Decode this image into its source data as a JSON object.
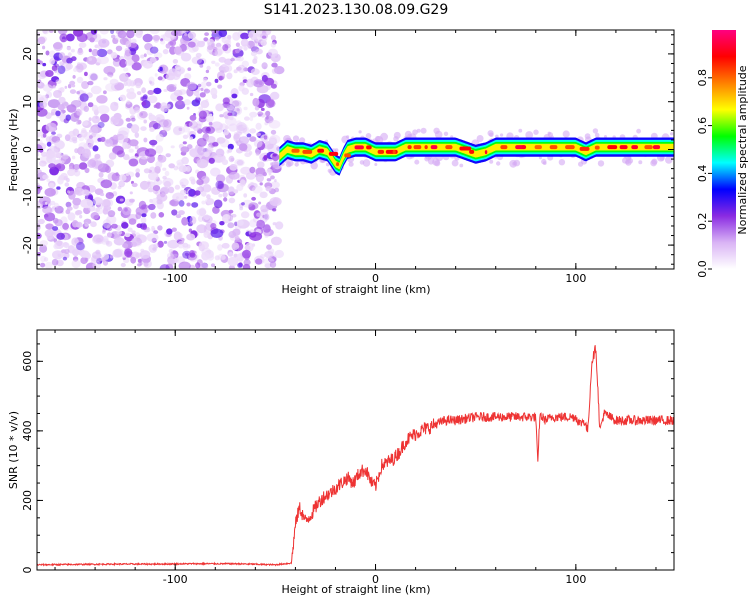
{
  "page": {
    "title": "S141.2023.130.08.09.G29"
  },
  "chart_data": [
    {
      "type": "heatmap",
      "title": "S141.2023.130.08.09.G29",
      "xlabel": "Height of straight line (km)",
      "ylabel": "Frequency (Hz)",
      "xlim": [
        -169,
        149
      ],
      "ylim": [
        -25,
        25
      ],
      "xticks": [
        -100,
        0,
        100
      ],
      "xtick_labels": [
        "-100",
        "0",
        "100"
      ],
      "yticks": [
        20,
        10,
        0,
        -10,
        -20
      ],
      "ytick_labels": [
        "20",
        "10",
        "0",
        "-10",
        "-20"
      ],
      "grid": false,
      "regions": [
        {
          "x_range": [
            -169,
            -48
          ],
          "y_range": [
            -25,
            25
          ],
          "pattern": "scattered noise",
          "typical_value": 0.1
        },
        {
          "x_range": [
            -48,
            149
          ],
          "y_range": [
            -2,
            2
          ],
          "pattern": "narrow band around ~0 Hz",
          "typical_value": 0.9
        }
      ],
      "band_center": {
        "x": [
          -48,
          -44,
          -40,
          -36,
          -32,
          -28,
          -24,
          -20,
          -18,
          -16,
          -14,
          -10,
          -5,
          0,
          5,
          10,
          15,
          20,
          30,
          40,
          50,
          55,
          60,
          70,
          80,
          90,
          100,
          105,
          110,
          120,
          130,
          140,
          149
        ],
        "y": [
          -1.5,
          0,
          -0.5,
          -0.5,
          -1,
          0,
          -0.5,
          -3,
          -3.5,
          -1.5,
          0,
          0.5,
          0.5,
          -0.5,
          -0.5,
          -0.5,
          0.5,
          0.5,
          0.5,
          0.5,
          -1,
          -0.5,
          0.5,
          0.5,
          0.5,
          0.5,
          0.5,
          -0.5,
          0.5,
          0.5,
          0.5,
          0.5,
          0.5
        ]
      },
      "colorbar": {
        "label": "Normalized spectral amplitude",
        "range": [
          0,
          1
        ],
        "ticks": [
          0.0,
          0.2,
          0.4,
          0.6,
          0.8
        ],
        "tick_labels": [
          "0.0",
          "0.2",
          "0.4",
          "0.6",
          "0.8"
        ],
        "colors": [
          "#ffffff",
          "#d9b3f5",
          "#8a2be2",
          "#0000ff",
          "#00ffff",
          "#00ff00",
          "#ffff00",
          "#ff8000",
          "#ff0000",
          "#ff0080"
        ]
      }
    },
    {
      "type": "line",
      "title": "",
      "xlabel": "Height of straight line (km)",
      "ylabel": "SNR (10 * v/v)",
      "xlim": [
        -169,
        149
      ],
      "ylim": [
        0,
        690
      ],
      "xticks": [
        -100,
        0,
        100
      ],
      "xtick_labels": [
        "-100",
        "0",
        "100"
      ],
      "yticks": [
        0,
        200,
        400,
        600
      ],
      "ytick_labels": [
        "0",
        "200",
        "400",
        "600"
      ],
      "grid": false,
      "series_color": "#ee3333",
      "series": [
        {
          "x": [
            -169,
            -150,
            -130,
            -110,
            -90,
            -70,
            -50,
            -42,
            -40,
            -38,
            -35,
            -32,
            -29,
            -26,
            -23,
            -20,
            -17,
            -14,
            -11,
            -8,
            -5,
            -2,
            0,
            3,
            6,
            9,
            12,
            15,
            18,
            21,
            24,
            27,
            30,
            35,
            40,
            45,
            50,
            55,
            60,
            65,
            70,
            75,
            80,
            81,
            82,
            85,
            88,
            90,
            95,
            100,
            102,
            104,
            106,
            108,
            110,
            112,
            114,
            120,
            130,
            140,
            149
          ],
          "y": [
            15,
            16,
            17,
            17,
            18,
            18,
            15,
            20,
            130,
            180,
            140,
            160,
            190,
            210,
            220,
            235,
            250,
            265,
            250,
            280,
            290,
            250,
            240,
            300,
            310,
            320,
            340,
            370,
            385,
            395,
            405,
            410,
            420,
            430,
            430,
            435,
            440,
            440,
            440,
            440,
            440,
            440,
            440,
            300,
            445,
            430,
            440,
            440,
            440,
            440,
            420,
            430,
            400,
            600,
            640,
            400,
            450,
            430,
            430,
            430,
            430
          ]
        }
      ]
    }
  ]
}
